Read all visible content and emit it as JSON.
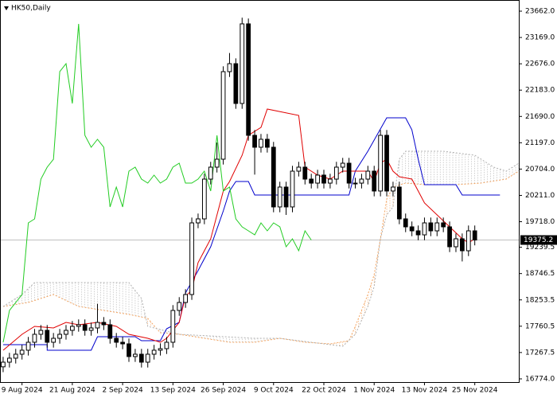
{
  "chart_data": {
    "type": "candlestick",
    "title": "HK50,Daily",
    "xlim": [
      -0.5,
      82
    ],
    "ylim": [
      16714,
      23871
    ],
    "xticks": [
      {
        "value": 3,
        "label": "9 Aug 2024"
      },
      {
        "value": 11,
        "label": "21 Aug 2024"
      },
      {
        "value": 19,
        "label": "2 Sep 2024"
      },
      {
        "value": 27,
        "label": "13 Sep 2024"
      },
      {
        "value": 35,
        "label": "26 Sep 2024"
      },
      {
        "value": 43,
        "label": "9 Oct 2024"
      },
      {
        "value": 51,
        "label": "22 Oct 2024"
      },
      {
        "value": 59,
        "label": "1 Nov 2024"
      },
      {
        "value": 67,
        "label": "13 Nov 2024"
      },
      {
        "value": 75,
        "label": "25 Nov 2024"
      }
    ],
    "yticks": [
      {
        "value": 23662,
        "label": "23662.0"
      },
      {
        "value": 23169,
        "label": "23169.0"
      },
      {
        "value": 22676,
        "label": "22676.0"
      },
      {
        "value": 22183,
        "label": "22183.0"
      },
      {
        "value": 21690,
        "label": "21690.0"
      },
      {
        "value": 21197,
        "label": "21197.0"
      },
      {
        "value": 20704,
        "label": "20704.0"
      },
      {
        "value": 20211,
        "label": "20211.0"
      },
      {
        "value": 19718,
        "label": "19718.0"
      },
      {
        "value": 19239.5,
        "label": "19239.5"
      },
      {
        "value": 18746.5,
        "label": "18746.5"
      },
      {
        "value": 18253.5,
        "label": "18253.5"
      },
      {
        "value": 17760.5,
        "label": "17760.5"
      },
      {
        "value": 17267.5,
        "label": "17267.5"
      },
      {
        "value": 16774,
        "label": "16774.0"
      }
    ],
    "last_price": 19375.2,
    "candles": {
      "x": [
        0,
        1,
        2,
        3,
        4,
        5,
        6,
        7,
        8,
        9,
        10,
        11,
        12,
        13,
        14,
        15,
        16,
        17,
        18,
        19,
        20,
        21,
        22,
        23,
        24,
        25,
        26,
        27,
        28,
        29,
        30,
        31,
        32,
        33,
        34,
        35,
        36,
        37,
        38,
        39,
        40,
        41,
        42,
        43,
        44,
        45,
        46,
        47,
        48,
        49,
        50,
        51,
        52,
        53,
        54,
        55,
        56,
        57,
        58,
        59,
        60,
        61,
        62,
        63,
        64,
        65,
        66,
        67,
        68,
        69,
        70,
        71,
        72,
        73,
        74,
        75
      ],
      "open": [
        17000,
        17087,
        17162,
        17236,
        17311,
        17460,
        17609,
        17683,
        17460,
        17534,
        17609,
        17683,
        17758,
        17788,
        17683,
        17728,
        17832,
        17788,
        17534,
        17460,
        17430,
        17192,
        17236,
        17087,
        17236,
        17311,
        17340,
        17460,
        18056,
        18205,
        18354,
        19696,
        19771,
        20516,
        20740,
        20889,
        22529,
        22678,
        21933,
        23424,
        21336,
        21113,
        21262,
        21113,
        19995,
        20367,
        19995,
        20665,
        20740,
        20516,
        20441,
        20591,
        20441,
        20516,
        20740,
        20814,
        20441,
        20441,
        20516,
        20665,
        20293,
        21336,
        20293,
        20367,
        19771,
        19622,
        19547,
        19472,
        19696,
        19547,
        19696,
        19622,
        19249,
        19398,
        19174,
        19547
      ],
      "high": [
        17187,
        17262,
        17336,
        17411,
        17560,
        17709,
        17783,
        17783,
        17634,
        17709,
        17783,
        17858,
        17888,
        17888,
        17828,
        18180,
        17932,
        17888,
        17634,
        17560,
        17530,
        17336,
        17336,
        17336,
        17411,
        17440,
        17560,
        18156,
        18305,
        18454,
        19796,
        19871,
        20616,
        20840,
        21200,
        22629,
        22878,
        22778,
        23540,
        23524,
        21436,
        21362,
        21362,
        21213,
        20467,
        20467,
        20765,
        20840,
        20840,
        20616,
        20691,
        20691,
        20616,
        20840,
        20914,
        20914,
        20541,
        20616,
        20765,
        20765,
        21436,
        21436,
        20467,
        20467,
        19871,
        19722,
        19647,
        19796,
        19796,
        19796,
        19796,
        19722,
        19498,
        19498,
        19647,
        19647
      ],
      "low": [
        16900,
        16987,
        17062,
        17136,
        17211,
        17360,
        17509,
        17360,
        17360,
        17434,
        17509,
        17583,
        17658,
        17583,
        17583,
        17628,
        17688,
        17434,
        17360,
        17330,
        17092,
        17092,
        16987,
        16987,
        17136,
        17211,
        17240,
        17360,
        17956,
        18105,
        18254,
        19596,
        19671,
        20416,
        20640,
        20789,
        22429,
        21833,
        21833,
        21236,
        20600,
        21013,
        21013,
        19895,
        19895,
        19845,
        19895,
        20565,
        20416,
        20341,
        20341,
        20341,
        20341,
        20416,
        20640,
        20341,
        20341,
        20341,
        20416,
        20193,
        20193,
        20193,
        20193,
        19671,
        19522,
        19447,
        19372,
        19372,
        19447,
        19447,
        19522,
        19149,
        19149,
        18974,
        19074,
        19275
      ],
      "close": [
        17087,
        17162,
        17236,
        17311,
        17460,
        17609,
        17683,
        17460,
        17534,
        17609,
        17683,
        17758,
        17788,
        17683,
        17728,
        17832,
        17788,
        17534,
        17460,
        17430,
        17192,
        17236,
        17087,
        17236,
        17311,
        17340,
        17460,
        18056,
        18205,
        18354,
        19696,
        19771,
        20516,
        20740,
        20889,
        22529,
        22678,
        21933,
        23424,
        21336,
        21113,
        21262,
        21113,
        19995,
        20367,
        19995,
        20665,
        20740,
        20516,
        20441,
        20591,
        20441,
        20516,
        20740,
        20814,
        20441,
        20441,
        20516,
        20665,
        20293,
        21336,
        20293,
        20367,
        19771,
        19622,
        19547,
        19472,
        19696,
        19547,
        19696,
        19622,
        19249,
        19398,
        19174,
        19547,
        19375.2
      ]
    },
    "lines": [
      {
        "color": "#f4a460",
        "style": "dotted",
        "x": [
          0,
          4,
          8,
          12,
          16,
          20,
          23,
          25,
          28,
          32,
          36,
          40,
          44,
          48,
          52,
          55,
          56,
          57,
          58,
          59,
          60,
          61,
          62,
          64,
          67,
          72,
          76,
          80,
          82
        ],
        "values": [
          18131,
          18205,
          18354,
          18131,
          18056,
          17982,
          17907,
          17639,
          17609,
          17534,
          17460,
          17460,
          17534,
          17460,
          17430,
          17490,
          17758,
          18056,
          18354,
          18727,
          19398,
          20143,
          20367,
          20441,
          20412,
          20412,
          20441,
          20516,
          20665
        ]
      },
      {
        "color": "#b0b0b0",
        "style": "dotted",
        "x": [
          0,
          3,
          5,
          10,
          20,
          22,
          23,
          28,
          40,
          44,
          54,
          56,
          58,
          59,
          60,
          61,
          62,
          63,
          64,
          70,
          75,
          78,
          80,
          82
        ],
        "values": [
          18131,
          18354,
          18578,
          18578,
          18578,
          18280,
          17758,
          17609,
          17534,
          17534,
          17385,
          17609,
          18131,
          18503,
          19398,
          19845,
          19994,
          20889,
          21038,
          21038,
          20964,
          20740,
          20665,
          20814
        ]
      },
      {
        "color": "#0000cc",
        "style": "solid",
        "x": [
          0,
          7,
          7,
          14,
          15,
          21,
          22,
          25,
          26,
          28,
          29,
          31,
          33,
          35,
          36,
          37,
          39,
          40,
          55,
          56,
          58,
          61,
          64,
          65,
          66,
          67,
          72,
          73,
          79
        ],
        "values": [
          17415,
          17415,
          17311,
          17311,
          17564,
          17564,
          17490,
          17490,
          17713,
          17832,
          18384,
          18802,
          19249,
          19920,
          20293,
          20472,
          20472,
          20218,
          20218,
          20665,
          21038,
          21664,
          21664,
          21441,
          20889,
          20412,
          20412,
          20218,
          20218
        ]
      },
      {
        "color": "#e00000",
        "style": "solid",
        "x": [
          0,
          3,
          5,
          8,
          10,
          12,
          15,
          18,
          20,
          23,
          25,
          26,
          28,
          29,
          30,
          31,
          33,
          35,
          36,
          38,
          39,
          41,
          42,
          47,
          48,
          50,
          52,
          54,
          56,
          58,
          59,
          60,
          61,
          62,
          63,
          65,
          66,
          67,
          69,
          71,
          73,
          74,
          75
        ],
        "values": [
          17311,
          17609,
          17758,
          17728,
          17832,
          17788,
          17832,
          17758,
          17609,
          17534,
          17460,
          17534,
          17832,
          18325,
          18429,
          18951,
          19398,
          20293,
          20472,
          20964,
          21336,
          21485,
          21828,
          21709,
          20740,
          20591,
          20516,
          20665,
          20665,
          20665,
          20472,
          20814,
          20889,
          20665,
          20561,
          20516,
          20293,
          20069,
          19845,
          19622,
          19398,
          19324,
          19398
        ]
      },
      {
        "color": "#22cc22",
        "style": "solid",
        "x": [
          0,
          1,
          2,
          3,
          4,
          5,
          6,
          7,
          8,
          9,
          10,
          11,
          12,
          13,
          14,
          15,
          16,
          17,
          18,
          19,
          20,
          21,
          22,
          23,
          24,
          25,
          26,
          27,
          28,
          29,
          30,
          31,
          32,
          33,
          34,
          35,
          36,
          37,
          38,
          39,
          40,
          41,
          42,
          43,
          44,
          45,
          46,
          47,
          48,
          49
        ],
        "values": [
          17460,
          18056,
          18205,
          18354,
          19696,
          19771,
          20516,
          20740,
          20889,
          22529,
          22678,
          21933,
          23424,
          21336,
          21113,
          21262,
          21113,
          19995,
          20367,
          19995,
          20665,
          20740,
          20516,
          20441,
          20591,
          20441,
          20516,
          20740,
          20814,
          20441,
          20441,
          20516,
          20665,
          20293,
          21336,
          20293,
          20367,
          19771,
          19622,
          19547,
          19472,
          19696,
          19547,
          19696,
          19622,
          19249,
          19398,
          19174,
          19547,
          19375.2
        ]
      }
    ]
  }
}
